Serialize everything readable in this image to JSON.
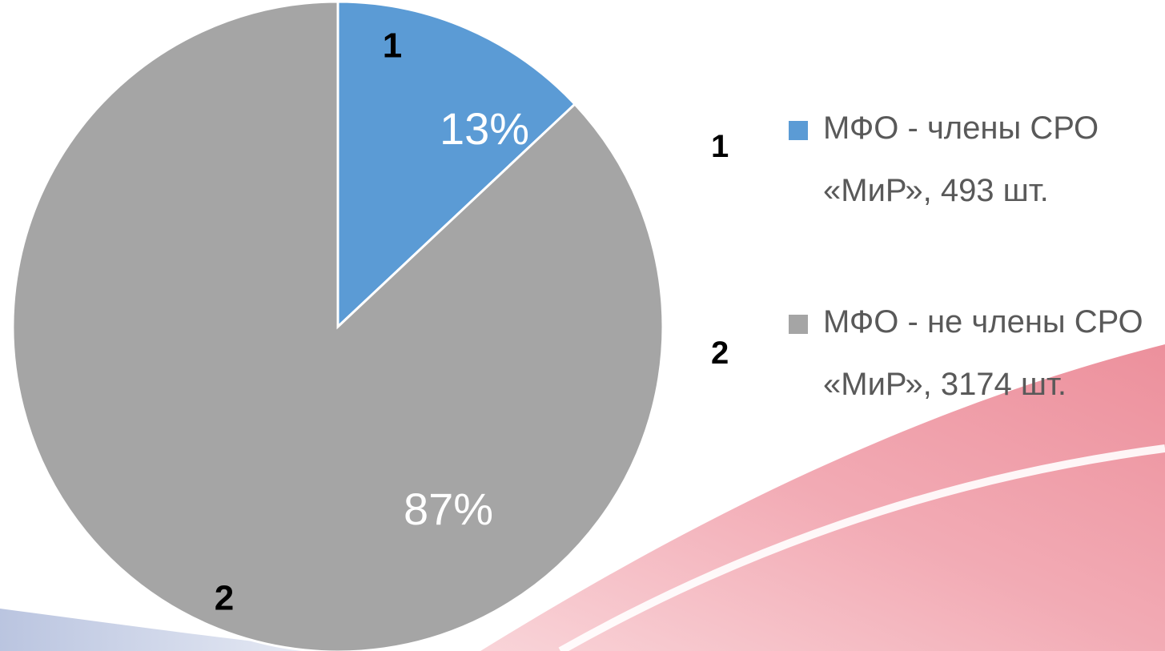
{
  "chart_data": {
    "type": "pie",
    "categories": [
      "МФО - члены СРО «МиР», 493 шт.",
      "МФО - не члены СРО «МиР», 3174 шт."
    ],
    "values": [
      13,
      87
    ],
    "value_labels": [
      "13%",
      "87%"
    ],
    "slice_labels": [
      "1",
      "2"
    ],
    "colors": [
      "#5b9bd5",
      "#a5a5a5"
    ]
  }
}
